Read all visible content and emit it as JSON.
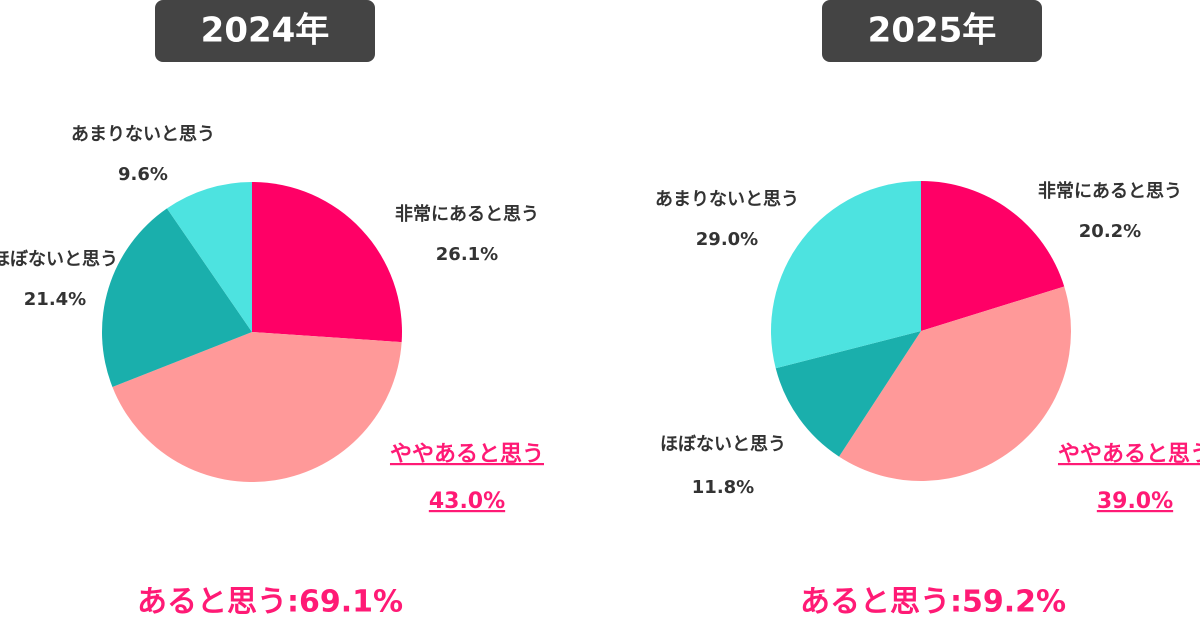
{
  "chart_data": [
    {
      "type": "pie",
      "title": "2024年",
      "categories": [
        "非常にあると思う",
        "ややあると思う",
        "ほぼないと思う",
        "あまりないと思う"
      ],
      "values": [
        26.1,
        43.0,
        21.4,
        9.6
      ],
      "value_labels": [
        "26.1%",
        "43.0%",
        "21.4%",
        "9.6%"
      ],
      "colors": [
        "#ff0066",
        "#ff9999",
        "#1aafac",
        "#4de3e0"
      ],
      "annotation": "あると思う:69.1%"
    },
    {
      "type": "pie",
      "title": "2025年",
      "categories": [
        "非常にあると思う",
        "ややあると思う",
        "ほぼないと思う",
        "あまりないと思う"
      ],
      "values": [
        20.2,
        39.0,
        11.8,
        29.0
      ],
      "value_labels": [
        "20.2%",
        "39.0%",
        "11.8%",
        "29.0%"
      ],
      "colors": [
        "#ff0066",
        "#ff9999",
        "#1aafac",
        "#4de3e0"
      ],
      "annotation": "あると思う:59.2%"
    }
  ]
}
